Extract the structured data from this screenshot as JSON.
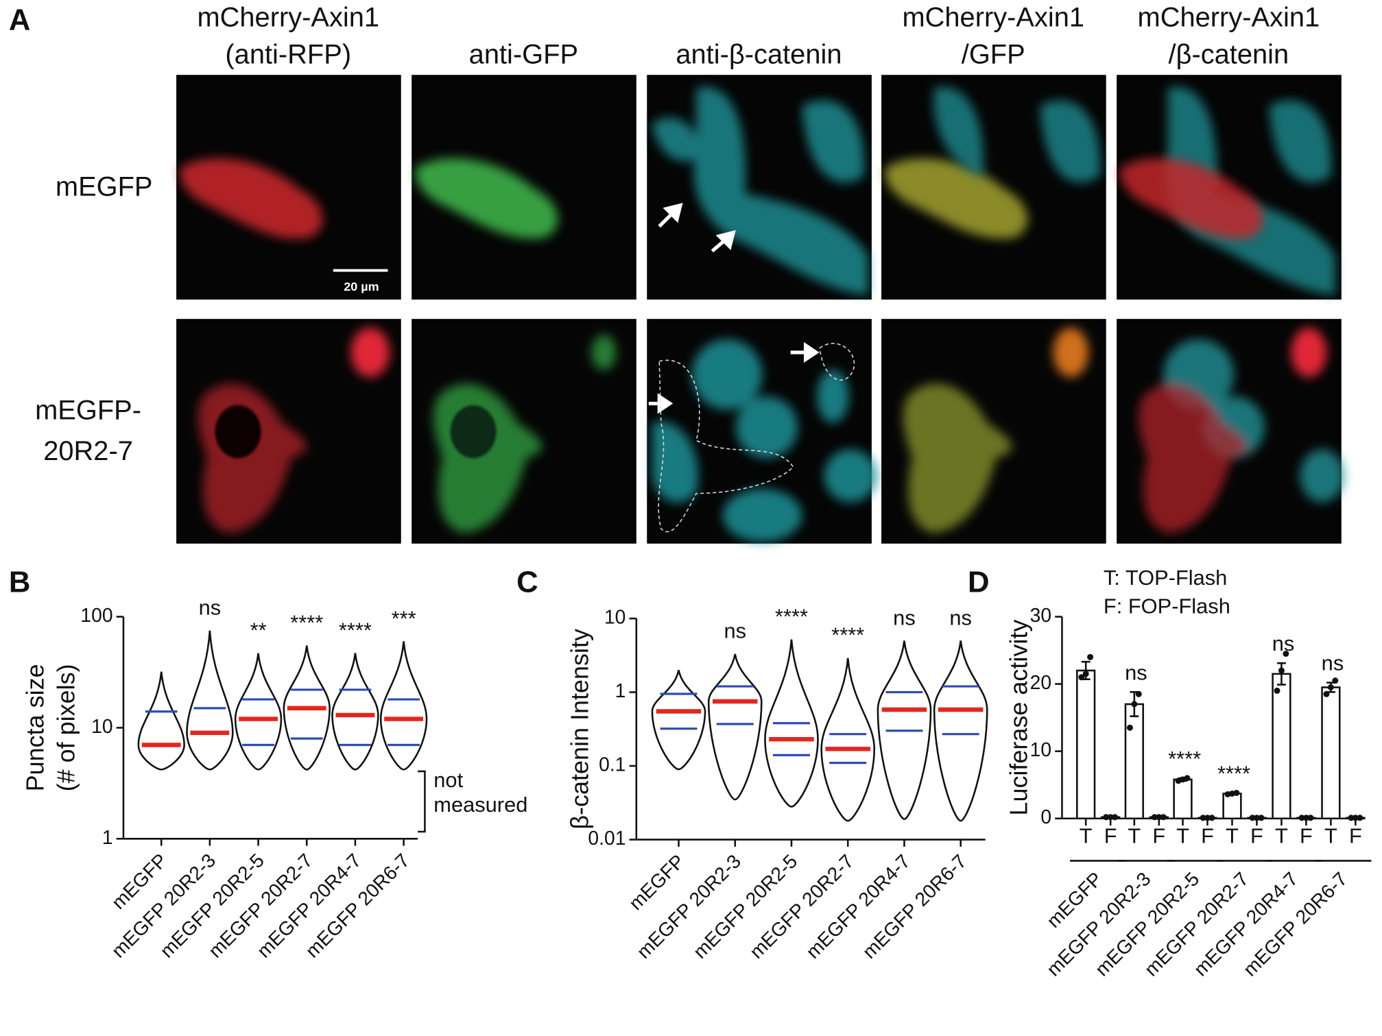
{
  "panel_labels": [
    "A",
    "B",
    "C",
    "D"
  ],
  "panel_a": {
    "column_titles": [
      [
        "mCherry-Axin1",
        "(anti-RFP)"
      ],
      [
        "anti-GFP"
      ],
      [
        "anti-β-catenin"
      ],
      [
        "mCherry-Axin1",
        "/GFP"
      ],
      [
        "mCherry-Axin1",
        "/β-catenin"
      ]
    ],
    "row_labels": [
      [
        "mEGFP"
      ],
      [
        "mEGFP-",
        "20R2-7"
      ]
    ],
    "scale_bar": "20 µm"
  },
  "chart_data": [
    {
      "type": "violin",
      "ylabel": [
        "Puncta size",
        "(# of pixels)"
      ],
      "categories": [
        "mEGFP",
        "mEGFP 20R2-3",
        "mEGFP 20R2-5",
        "mEGFP 20R2-7",
        "mEGFP 20R4-7",
        "mEGFP 20R6-7"
      ],
      "log": true,
      "ylim": [
        1,
        100
      ],
      "yticks": [
        1,
        10,
        100
      ],
      "min": [
        4.2,
        4.2,
        4.2,
        4.2,
        4.2,
        4.2
      ],
      "max": [
        32,
        75,
        47,
        55,
        47,
        60
      ],
      "median": [
        7,
        9,
        12,
        15,
        13,
        12
      ],
      "q1": [
        null,
        null,
        7,
        8,
        7,
        7
      ],
      "q3": [
        14,
        15,
        18,
        22,
        22,
        18
      ],
      "median_color": "#e3261f",
      "quartile_color": "#2b4db3",
      "annotations": [
        null,
        "ns",
        "**",
        "****",
        "****",
        "***"
      ],
      "note": [
        "not",
        "measured"
      ]
    },
    {
      "type": "violin",
      "ylabel": [
        "β-catenin Intensity"
      ],
      "categories": [
        "mEGFP",
        "mEGFP 20R2-3",
        "mEGFP 20R2-5",
        "mEGFP 20R2-7",
        "mEGFP 20R4-7",
        "mEGFP 20R6-7"
      ],
      "log": true,
      "ylim": [
        0.01,
        10
      ],
      "yticks": [
        0.01,
        0.1,
        1,
        10
      ],
      "min": [
        0.09,
        0.035,
        0.028,
        0.018,
        0.019,
        0.018
      ],
      "max": [
        2,
        3.3,
        5.2,
        2.9,
        5,
        5
      ],
      "median": [
        0.55,
        0.75,
        0.23,
        0.17,
        0.58,
        0.58
      ],
      "q1": [
        0.32,
        0.37,
        0.14,
        0.11,
        0.3,
        0.27
      ],
      "q3": [
        0.95,
        1.2,
        0.38,
        0.27,
        1,
        1.2
      ],
      "median_color": "#e3261f",
      "quartile_color": "#2b4db3",
      "annotations": [
        null,
        "ns",
        "****",
        "****",
        "ns",
        "ns"
      ]
    },
    {
      "type": "bar",
      "ylabel": [
        "Luciferase activity"
      ],
      "categories": [
        "mEGFP",
        "mEGFP 20R2-3",
        "mEGFP 20R2-5",
        "mEGFP 20R2-7",
        "mEGFP 20R4-7",
        "mEGFP 20R6-7"
      ],
      "ylim": [
        0,
        30
      ],
      "yticks": [
        0,
        10,
        20,
        30
      ],
      "legend": [
        "T: TOP-Flash",
        "F: FOP-Flash"
      ],
      "series": [
        {
          "name": "T",
          "values": [
            22,
            17,
            5.8,
            3.7,
            21.5,
            19.5
          ],
          "errors": [
            1.3,
            1.8,
            0.2,
            0.1,
            1.6,
            0.7
          ],
          "points": [
            [
              21,
              21.5,
              24
            ],
            [
              13.5,
              17,
              18.5
            ],
            [
              5.6,
              5.8,
              6
            ],
            [
              3.6,
              3.7,
              3.8
            ],
            [
              19,
              22,
              24.5
            ],
            [
              18.5,
              19.5,
              20.5
            ]
          ]
        },
        {
          "name": "F",
          "values": [
            0.2,
            0.2,
            0.1,
            0.1,
            0.1,
            0.1
          ],
          "points": [
            [
              0.2,
              0.2,
              0.2
            ],
            [
              0.2,
              0.2,
              0.2
            ],
            [
              0.1,
              0.1,
              0.1
            ],
            [
              0.1,
              0.1,
              0.1
            ],
            [
              0.1,
              0.1,
              0.1
            ],
            [
              0.1,
              0.1,
              0.1
            ]
          ]
        }
      ],
      "annotations": [
        null,
        "ns",
        "****",
        "****",
        "ns",
        "ns"
      ]
    }
  ]
}
